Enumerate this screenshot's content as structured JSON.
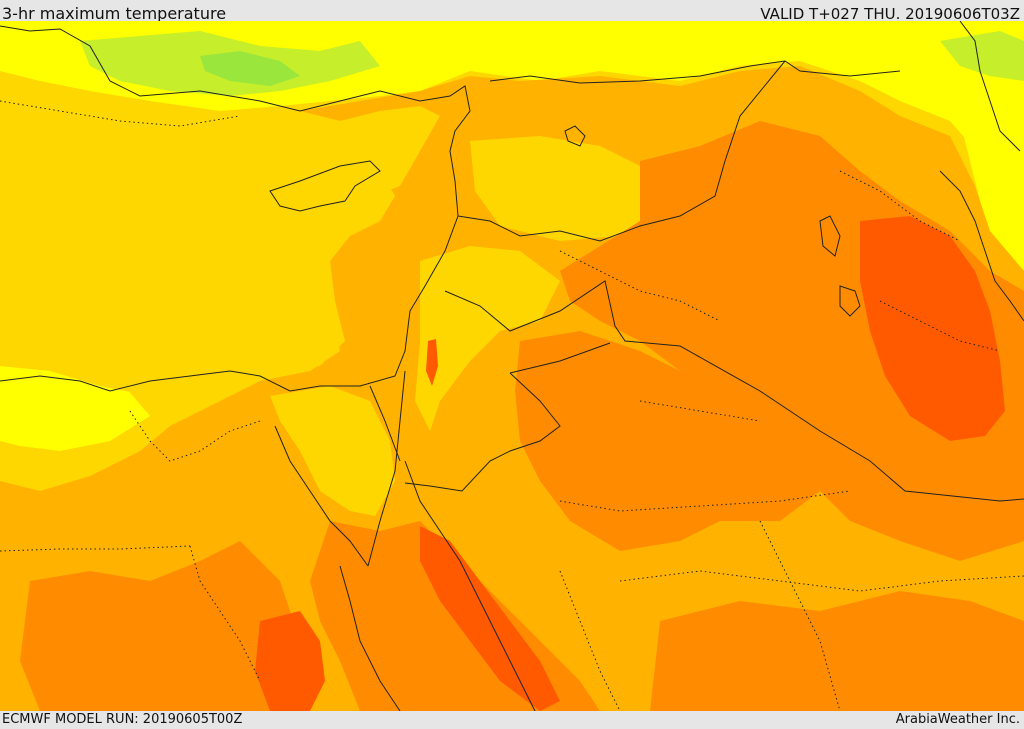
{
  "header": {
    "title": "3-hr maximum temperature",
    "valid": "VALID T+027 THU. 20190606T03Z"
  },
  "footer": {
    "model_run": "ECMWF MODEL RUN: 20190605T00Z",
    "credit": "ArabiaWeather Inc."
  },
  "palette": {
    "green": "#9be63c",
    "yellow_green": "#d8f000",
    "yellow": "#ffff00",
    "gold": "#ffd700",
    "amber": "#ffb300",
    "orange": "#ff8c00",
    "red_orange": "#ff5a00",
    "border_line": "#222222"
  }
}
